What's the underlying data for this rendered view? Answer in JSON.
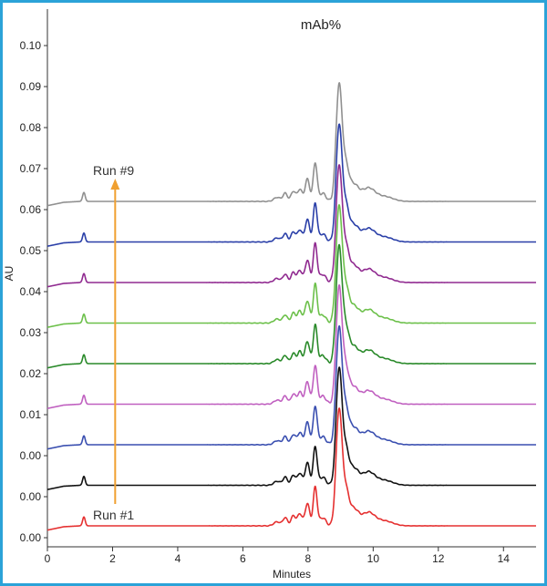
{
  "chart_data": {
    "type": "line",
    "title": "mAb%",
    "xlabel": "Minutes",
    "ylabel": "AU",
    "xlim": [
      0,
      15
    ],
    "xticks": [
      0,
      2,
      4,
      6,
      8,
      10,
      12,
      14
    ],
    "ytick_labels": [
      "0.00",
      "0.00",
      "0.00",
      "0.01",
      "0.02",
      "0.03",
      "0.04",
      "0.05",
      "0.06",
      "0.07",
      "0.08",
      "0.09",
      "0.10"
    ],
    "grid": false,
    "annotations": {
      "first_run": "Run #1",
      "last_run": "Run #9",
      "arrow_color": "#f0a030"
    },
    "peaks": [
      {
        "t": 1.12,
        "h": 0.22,
        "w": 0.04
      },
      {
        "t": 7.05,
        "h": 0.1,
        "w": 0.1
      },
      {
        "t": 7.3,
        "h": 0.2,
        "w": 0.07
      },
      {
        "t": 7.55,
        "h": 0.25,
        "w": 0.07
      },
      {
        "t": 7.75,
        "h": 0.3,
        "w": 0.07
      },
      {
        "t": 7.98,
        "h": 0.55,
        "w": 0.07
      },
      {
        "t": 8.22,
        "h": 0.95,
        "w": 0.06
      },
      {
        "t": 8.45,
        "h": 0.2,
        "w": 0.1
      },
      {
        "t": 8.95,
        "h": 2.8,
        "w": 0.09
      },
      {
        "t": 9.15,
        "h": 0.8,
        "w": 0.1
      },
      {
        "t": 9.4,
        "h": 0.4,
        "w": 0.15
      },
      {
        "t": 9.85,
        "h": 0.32,
        "w": 0.2
      },
      {
        "t": 10.35,
        "h": 0.12,
        "w": 0.25
      }
    ],
    "peak_units": "fraction of run offset spacing",
    "series": [
      {
        "run": 1,
        "color": "#e53030",
        "baseline_offset": 0
      },
      {
        "run": 2,
        "color": "#111111",
        "baseline_offset": 1
      },
      {
        "run": 3,
        "color": "#3a4fb0",
        "baseline_offset": 2
      },
      {
        "run": 4,
        "color": "#c060c0",
        "baseline_offset": 3
      },
      {
        "run": 5,
        "color": "#2a8a2a",
        "baseline_offset": 4
      },
      {
        "run": 6,
        "color": "#6cc04a",
        "baseline_offset": 5
      },
      {
        "run": 7,
        "color": "#902a90",
        "baseline_offset": 6
      },
      {
        "run": 8,
        "color": "#2a3fa8",
        "baseline_offset": 7
      },
      {
        "run": 9,
        "color": "#909090",
        "baseline_offset": 8
      }
    ]
  }
}
